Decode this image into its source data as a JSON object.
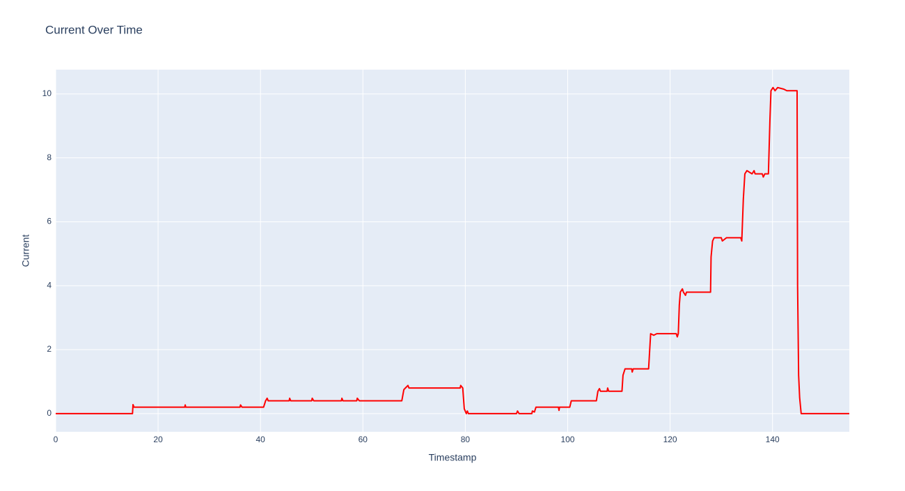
{
  "chart_data": {
    "type": "line",
    "title": "Current Over Time",
    "x_label": "Timestamp",
    "y_label": "Current",
    "xlim": [
      0,
      155
    ],
    "ylim": [
      -0.57,
      10.76
    ],
    "xticks": [
      0,
      20,
      40,
      60,
      80,
      100,
      120,
      140
    ],
    "yticks": [
      0,
      2,
      4,
      6,
      8,
      10
    ],
    "grid": true,
    "series": [
      {
        "name": "Current",
        "color": "#ff0000",
        "x": [
          0,
          15,
          15.1,
          15.3,
          25.2,
          25.3,
          25.4,
          36,
          36.1,
          36.4,
          40.6,
          41,
          41.3,
          41.5,
          45.6,
          45.7,
          45.9,
          50,
          50.1,
          50.4,
          55.8,
          55.9,
          56.1,
          58.8,
          58.9,
          59.3,
          67.6,
          68,
          68.3,
          68.8,
          69,
          79,
          79.1,
          79.5,
          79.8,
          80.2,
          80.4,
          80.6,
          90,
          90.2,
          90.5,
          93,
          93.1,
          93.5,
          93.8,
          98.2,
          98.3,
          98.4,
          100.4,
          100.7,
          105.6,
          105.9,
          106.2,
          106.4,
          107.7,
          107.8,
          108,
          110.6,
          110.8,
          111.2,
          112.5,
          112.6,
          112.8,
          115.8,
          116.2,
          116.8,
          117.4,
          121.2,
          121.4,
          121.6,
          121.8,
          122,
          122.4,
          122.6,
          123,
          123.2,
          127.9,
          128,
          128.3,
          128.6,
          130,
          130.2,
          131,
          133.8,
          134,
          134.3,
          134.6,
          135,
          136,
          136.4,
          136.6,
          138,
          138.2,
          138.5,
          139.2,
          139.5,
          139.7,
          140.1,
          140.5,
          141,
          142.2,
          142.8,
          144.8,
          144.9,
          145.1,
          145.3,
          145.6,
          155
        ],
        "values": [
          0,
          0,
          0.28,
          0.2,
          0.2,
          0.27,
          0.2,
          0.2,
          0.27,
          0.2,
          0.2,
          0.4,
          0.48,
          0.4,
          0.4,
          0.48,
          0.4,
          0.4,
          0.48,
          0.4,
          0.4,
          0.48,
          0.4,
          0.4,
          0.48,
          0.4,
          0.4,
          0.75,
          0.8,
          0.88,
          0.8,
          0.8,
          0.88,
          0.8,
          0.15,
          0,
          0.08,
          0,
          0,
          0.08,
          0,
          0,
          0.08,
          0.05,
          0.2,
          0.2,
          0.1,
          0.2,
          0.2,
          0.4,
          0.4,
          0.7,
          0.78,
          0.7,
          0.7,
          0.8,
          0.7,
          0.7,
          1.2,
          1.4,
          1.4,
          1.3,
          1.4,
          1.4,
          2.5,
          2.45,
          2.5,
          2.5,
          2.4,
          2.5,
          3.4,
          3.8,
          3.9,
          3.8,
          3.7,
          3.8,
          3.8,
          4.9,
          5.4,
          5.5,
          5.5,
          5.4,
          5.5,
          5.5,
          5.4,
          6.7,
          7.5,
          7.6,
          7.5,
          7.6,
          7.5,
          7.5,
          7.4,
          7.5,
          7.5,
          9.2,
          10.1,
          10.2,
          10.1,
          10.2,
          10.15,
          10.1,
          10.1,
          4,
          1.2,
          0.5,
          0,
          0
        ]
      }
    ]
  }
}
